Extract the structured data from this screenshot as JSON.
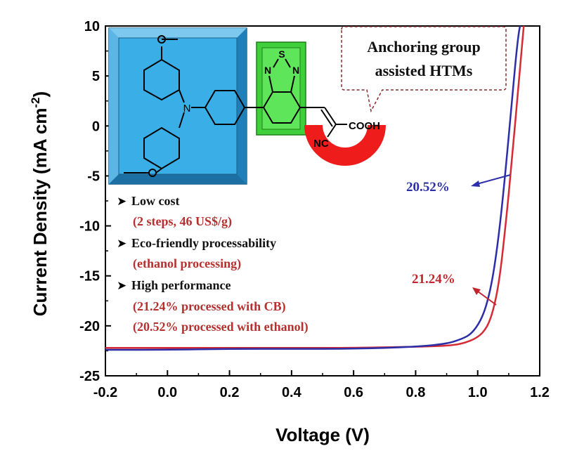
{
  "chart_data": {
    "type": "line",
    "xlabel": "Voltage (V)",
    "ylabel_main": "Current Density (mA cm",
    "ylabel_sup": "-2",
    "ylabel_close": ")",
    "xlim": [
      -0.2,
      1.2
    ],
    "ylim": [
      -25,
      10
    ],
    "x_ticks": [
      "-0.2",
      "0.0",
      "0.2",
      "0.4",
      "0.6",
      "0.8",
      "1.0",
      "1.2"
    ],
    "y_ticks": [
      "10",
      "5",
      "0",
      "-5",
      "-10",
      "-15",
      "-20",
      "-25"
    ],
    "series": [
      {
        "label": "21.24%",
        "color": "#d42b35",
        "x": [
          -0.2,
          0.0,
          0.2,
          0.4,
          0.6,
          0.8,
          0.9,
          0.95,
          1.0,
          1.03,
          1.05,
          1.07,
          1.09,
          1.11,
          1.13,
          1.15
        ],
        "y": [
          -22.2,
          -22.2,
          -22.2,
          -22.2,
          -22.2,
          -22.1,
          -22.0,
          -21.8,
          -21.2,
          -20.2,
          -18.5,
          -15.5,
          -10.0,
          -3.5,
          3.5,
          10.5
        ]
      },
      {
        "label": "20.52%",
        "color": "#2b2ea8",
        "x": [
          -0.2,
          0.0,
          0.2,
          0.4,
          0.6,
          0.8,
          0.9,
          0.95,
          0.98,
          1.01,
          1.03,
          1.05,
          1.07,
          1.09,
          1.11,
          1.13,
          1.14
        ],
        "y": [
          -22.4,
          -22.4,
          -22.3,
          -22.3,
          -22.3,
          -22.1,
          -21.8,
          -21.3,
          -20.8,
          -19.5,
          -17.8,
          -15.0,
          -10.5,
          -4.5,
          2.5,
          9.0,
          10.5
        ]
      }
    ]
  },
  "annotations": {
    "callout_line1": "Anchoring group",
    "callout_line2": "assisted HTMs",
    "label_blue": "20.52%",
    "label_red": "21.24%",
    "bullet_marker": "➤",
    "bullets": [
      {
        "title": "Low cost",
        "detail": [
          "(2 steps, 46 US$/g)"
        ]
      },
      {
        "title": "Eco-friendly processability",
        "detail": [
          "(ethanol processing)"
        ]
      },
      {
        "title": "High performance",
        "detail": [
          "(21.24% processed with CB)",
          "(20.52% processed with ethanol)"
        ]
      }
    ]
  },
  "molecule": {
    "n_atom": "N",
    "s_atom": "S",
    "n_left": "N",
    "n_right": "N",
    "cooh": "COOH",
    "nc": "NC"
  }
}
